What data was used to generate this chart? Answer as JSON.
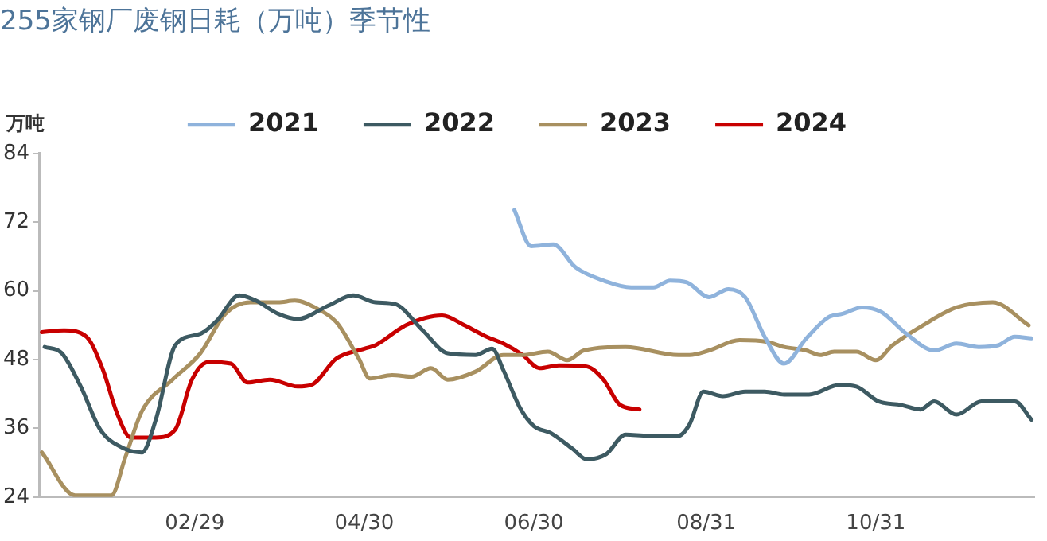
{
  "chart_data": {
    "type": "line",
    "title": "255家钢厂废钢日耗（万吨）季节性",
    "ylabel": "万吨",
    "xlim": [
      "--01-04",
      "--12-27"
    ],
    "xticks": [
      {
        "value": "--02-29",
        "label": "02/29"
      },
      {
        "value": "--04-30",
        "label": "04/30"
      },
      {
        "value": "--06-30",
        "label": "06/30"
      },
      {
        "value": "--08-31",
        "label": "08/31"
      },
      {
        "value": "--10-31",
        "label": "10/31"
      }
    ],
    "ylim": [
      24,
      84
    ],
    "yticks": [
      24,
      36,
      48,
      60,
      72,
      84
    ],
    "grid": false,
    "legend": "top",
    "marker": "none",
    "line_style": "solid",
    "series": [
      {
        "name": "2021",
        "color": "#8fb3dc",
        "x": [
          "--06-23",
          "--06-29",
          "--07-07",
          "--07-15",
          "--07-25",
          "--08-04",
          "--08-12",
          "--08-18",
          "--08-24",
          "--09-01",
          "--09-08",
          "--09-14",
          "--09-21",
          "--09-28",
          "--10-06",
          "--10-14",
          "--10-19",
          "--10-26",
          "--11-02",
          "--11-11",
          "--11-21",
          "--11-29",
          "--12-07",
          "--12-14",
          "--12-20",
          "--12-26"
        ],
        "values": [
          74.1,
          67.8,
          68.1,
          64.1,
          61.8,
          60.6,
          60.6,
          61.8,
          61.5,
          58.9,
          60.3,
          58.9,
          52,
          47.3,
          51.7,
          55.4,
          56,
          57.1,
          56.3,
          52.5,
          49.6,
          50.8,
          50.2,
          50.5,
          52,
          51.7
        ]
      },
      {
        "name": "2022",
        "color": "#3d5a62",
        "x": [
          "--01-06",
          "--01-12",
          "--01-19",
          "--01-26",
          "--02-04",
          "--02-10",
          "--02-15",
          "--02-22",
          "--03-02",
          "--03-08",
          "--03-16",
          "--03-22",
          "--03-30",
          "--04-06",
          "--04-17",
          "--04-26",
          "--05-04",
          "--05-11",
          "--05-21",
          "--05-30",
          "--06-09",
          "--06-15",
          "--06-19",
          "--06-25",
          "--06-30",
          "--07-06",
          "--07-14",
          "--07-19",
          "--07-26",
          "--08-02",
          "--08-10",
          "--08-21",
          "--08-25",
          "--08-30",
          "--09-06",
          "--09-14",
          "--09-21",
          "--09-28",
          "--10-07",
          "--10-18",
          "--10-24",
          "--11-01",
          "--11-09",
          "--11-16",
          "--11-21",
          "--11-29",
          "--12-08",
          "--12-20",
          "--12-26"
        ],
        "values": [
          50.2,
          49.2,
          43.3,
          35.8,
          32.4,
          31.8,
          37.5,
          50.5,
          52.5,
          54.8,
          59.2,
          58.3,
          56,
          55.1,
          57.4,
          59.2,
          58,
          57.7,
          53.1,
          49.1,
          48.8,
          49.9,
          46.2,
          39.6,
          36.4,
          35.2,
          32.4,
          30.6,
          31.5,
          34.9,
          34.7,
          34.7,
          36.7,
          42.4,
          41.6,
          42.4,
          42.4,
          41.9,
          41.9,
          43.6,
          43.3,
          40.7,
          40.1,
          39.3,
          40.7,
          38.4,
          40.7,
          40.7,
          37.5
        ]
      },
      {
        "name": "2023",
        "color": "#a89060",
        "x": [
          "--01-05",
          "--01-17",
          "--01-30",
          "--02-04",
          "--02-10",
          "--02-21",
          "--03-02",
          "--03-11",
          "--03-20",
          "--03-30",
          "--04-05",
          "--04-13",
          "--04-20",
          "--04-28",
          "--05-02",
          "--05-10",
          "--05-17",
          "--05-24",
          "--05-30",
          "--06-09",
          "--06-19",
          "--06-26",
          "--07-05",
          "--07-12",
          "--07-18",
          "--08-02",
          "--08-21",
          "--08-25",
          "--09-01",
          "--09-12",
          "--09-22",
          "--09-28",
          "--10-06",
          "--10-11",
          "--10-16",
          "--10-24",
          "--10-31",
          "--11-06",
          "--11-17",
          "--11-29",
          "--12-12",
          "--12-25"
        ],
        "values": [
          31.8,
          24.3,
          24.3,
          30.9,
          39,
          44.5,
          49.1,
          56,
          58,
          58,
          58.3,
          56.9,
          54.5,
          48.2,
          44.7,
          45.3,
          45,
          46.5,
          44.5,
          45.9,
          48.8,
          48.8,
          49.4,
          47.9,
          49.6,
          50.2,
          48.8,
          48.8,
          49.6,
          51.4,
          51.1,
          50.2,
          49.6,
          48.8,
          49.4,
          49.4,
          47.9,
          50.5,
          54,
          57.1,
          58,
          54
        ]
      },
      {
        "name": "2024",
        "color": "#c80000",
        "x": [
          "--01-05",
          "--01-13",
          "--01-21",
          "--01-27",
          "--02-01",
          "--02-06",
          "--02-15",
          "--02-22",
          "--02-28",
          "--03-05",
          "--03-13",
          "--03-19",
          "--03-27",
          "--04-06",
          "--04-11",
          "--04-20",
          "--04-30",
          "--05-04",
          "--05-15",
          "--05-28",
          "--06-05",
          "--06-13",
          "--06-19",
          "--06-26",
          "--07-02",
          "--07-09",
          "--07-19",
          "--07-25",
          "--07-31",
          "--08-07"
        ],
        "values": [
          52.8,
          53.1,
          52,
          46.2,
          38.7,
          34.4,
          34.4,
          35.8,
          44.5,
          47.6,
          47.3,
          44,
          44.5,
          43.3,
          43.6,
          48.2,
          49.9,
          50.5,
          54,
          55.7,
          54,
          52,
          50.8,
          48.8,
          46.5,
          47,
          46.8,
          44.5,
          40.1,
          39.3
        ]
      }
    ]
  }
}
